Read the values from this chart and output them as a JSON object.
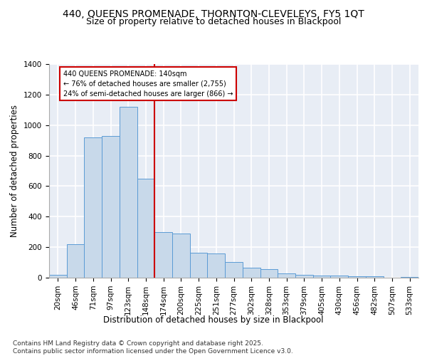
{
  "title_line1": "440, QUEENS PROMENADE, THORNTON-CLEVELEYS, FY5 1QT",
  "title_line2": "Size of property relative to detached houses in Blackpool",
  "xlabel": "Distribution of detached houses by size in Blackpool",
  "ylabel": "Number of detached properties",
  "categories": [
    "20sqm",
    "46sqm",
    "71sqm",
    "97sqm",
    "123sqm",
    "148sqm",
    "174sqm",
    "200sqm",
    "225sqm",
    "251sqm",
    "277sqm",
    "302sqm",
    "328sqm",
    "353sqm",
    "379sqm",
    "405sqm",
    "430sqm",
    "456sqm",
    "482sqm",
    "507sqm",
    "533sqm"
  ],
  "values": [
    20,
    220,
    920,
    930,
    1120,
    650,
    300,
    290,
    165,
    160,
    105,
    65,
    55,
    30,
    20,
    15,
    15,
    10,
    8,
    0,
    5
  ],
  "bar_color": "#c8d9ea",
  "bar_edge_color": "#5b9bd5",
  "vline_x": 5.5,
  "vline_color": "#cc0000",
  "annotation_text": "440 QUEENS PROMENADE: 140sqm\n← 76% of detached houses are smaller (2,755)\n24% of semi-detached houses are larger (866) →",
  "annotation_box_color": "#cc0000",
  "ylim": [
    0,
    1400
  ],
  "yticks": [
    0,
    200,
    400,
    600,
    800,
    1000,
    1200,
    1400
  ],
  "background_color": "#e8edf5",
  "grid_color": "#ffffff",
  "footer_text": "Contains HM Land Registry data © Crown copyright and database right 2025.\nContains public sector information licensed under the Open Government Licence v3.0.",
  "title_fontsize": 10,
  "subtitle_fontsize": 9,
  "label_fontsize": 8.5,
  "tick_fontsize": 7.5,
  "footer_fontsize": 6.5
}
